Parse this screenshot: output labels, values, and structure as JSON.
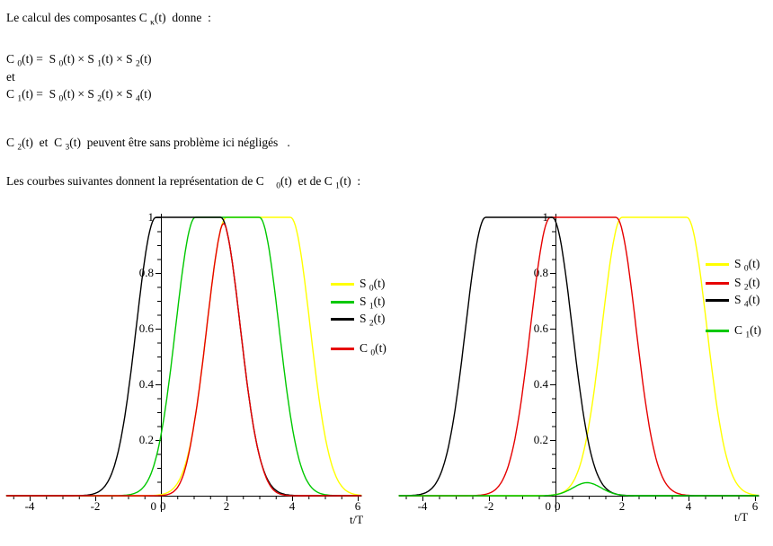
{
  "document": {
    "lines": [
      {
        "tokens": [
          [
            "Le calcul des composantes C ",
            "κ"
          ],
          [
            "(t)  donne  :",
            ""
          ]
        ]
      },
      {
        "tokens": [
          [
            "C ",
            "0"
          ],
          [
            "(t) =  S ",
            "0"
          ],
          [
            "(t) × S ",
            "1"
          ],
          [
            "(t) × S ",
            "2"
          ],
          [
            "(t)",
            ""
          ]
        ]
      },
      {
        "tokens": [
          [
            "et",
            ""
          ]
        ]
      },
      {
        "tokens": [
          [
            "C ",
            "1"
          ],
          [
            "(t) =  S ",
            "0"
          ],
          [
            "(t) × S ",
            "2"
          ],
          [
            "(t) × S ",
            "4"
          ],
          [
            "(t)",
            ""
          ]
        ]
      },
      {
        "tokens": [
          [
            "C ",
            "2"
          ],
          [
            "(t)  et  C ",
            "3"
          ],
          [
            "(t)  peuvent être sans problème ici négligés   .",
            ""
          ]
        ]
      },
      {
        "tokens": [
          [
            "Les courbes suivantes donnent la représentation de C    ",
            "0"
          ],
          [
            "(t)  et de C ",
            "1"
          ],
          [
            "(t)  :",
            ""
          ]
        ]
      }
    ]
  },
  "chart_data": [
    {
      "type": "line",
      "title": "",
      "xlabel": "t/T",
      "ylabel": "",
      "xlim": [
        -4.7,
        6.12
      ],
      "ylim": [
        0,
        1
      ],
      "grid": false,
      "legend_position": "right",
      "x_major_ticks": [
        -4,
        -2,
        0,
        2,
        4,
        6
      ],
      "x_major_tick_labels": [
        {
          "v": -4,
          "label": "-4"
        },
        {
          "v": -2,
          "label": "-2"
        },
        {
          "v": 2,
          "label": "2"
        },
        {
          "v": 4,
          "label": "4"
        },
        {
          "v": 6,
          "label": "6"
        }
      ],
      "x_minor_step": 0.5,
      "y_major_tick_labels": [
        {
          "v": 0.2,
          "label": "0.2"
        },
        {
          "v": 0.4,
          "label": "0.4"
        },
        {
          "v": 0.6,
          "label": "0.6"
        },
        {
          "v": 0.8,
          "label": "0.8"
        },
        {
          "v": 1,
          "label": "1"
        }
      ],
      "y_minor_step": 0.05,
      "origin_labels": [
        "0",
        "0"
      ],
      "axis_color": "#000000",
      "series": [
        {
          "key": "S0",
          "name_tokens": [
            [
              "S ",
              "0"
            ],
            [
              "(t)",
              ""
            ]
          ],
          "color": "#ffff00",
          "model": "plateau",
          "plateau": [
            2.0,
            3.95
          ],
          "sigma": 0.6,
          "max": 1
        },
        {
          "key": "S1",
          "name_tokens": [
            [
              "S ",
              "1"
            ],
            [
              "(t)",
              ""
            ]
          ],
          "color": "#00c800",
          "model": "plateau",
          "plateau": [
            1.05,
            3.0
          ],
          "sigma": 0.6,
          "max": 1
        },
        {
          "key": "S2",
          "name_tokens": [
            [
              "S ",
              "2"
            ],
            [
              "(t)",
              ""
            ]
          ],
          "color": "#000000",
          "model": "plateau",
          "plateau": [
            -0.15,
            1.82
          ],
          "sigma": 0.6,
          "max": 1
        },
        {
          "key": "C0",
          "name_tokens": [
            [
              "C ",
              "0"
            ],
            [
              "(t)",
              ""
            ]
          ],
          "color": "#e60000",
          "model": "product",
          "factors": [
            0,
            1,
            2
          ],
          "peak": {
            "x": 1.9,
            "y": 0.96
          },
          "legend_gap": true
        }
      ]
    },
    {
      "type": "line",
      "title": "",
      "xlabel": "t/T",
      "ylabel": "",
      "xlim": [
        -4.7,
        6.12
      ],
      "ylim": [
        0,
        1
      ],
      "grid": false,
      "legend_position": "right",
      "x_major_ticks": [
        -4,
        -2,
        0,
        2,
        4,
        6
      ],
      "x_major_tick_labels": [
        {
          "v": -4,
          "label": "-4"
        },
        {
          "v": -2,
          "label": "-2"
        },
        {
          "v": 2,
          "label": "2"
        },
        {
          "v": 4,
          "label": "4"
        },
        {
          "v": 6,
          "label": "6"
        }
      ],
      "x_minor_step": 0.5,
      "y_major_tick_labels": [
        {
          "v": 0.2,
          "label": "0.2"
        },
        {
          "v": 0.4,
          "label": "0.4"
        },
        {
          "v": 0.6,
          "label": "0.6"
        },
        {
          "v": 0.8,
          "label": "0.8"
        },
        {
          "v": 1,
          "label": "1"
        }
      ],
      "y_minor_step": 0.05,
      "origin_labels": [
        "0",
        "0"
      ],
      "axis_color": "#000000",
      "series": [
        {
          "key": "S0",
          "name_tokens": [
            [
              "S ",
              "0"
            ],
            [
              "(t)",
              ""
            ]
          ],
          "color": "#ffff00",
          "model": "plateau",
          "plateau": [
            2.0,
            3.95
          ],
          "sigma": 0.6,
          "max": 1
        },
        {
          "key": "S2",
          "name_tokens": [
            [
              "S ",
              "2"
            ],
            [
              "(t)",
              ""
            ]
          ],
          "color": "#e60000",
          "model": "plateau",
          "plateau": [
            -0.15,
            1.82
          ],
          "sigma": 0.6,
          "max": 1
        },
        {
          "key": "S4",
          "name_tokens": [
            [
              "S ",
              "4"
            ],
            [
              "(t)",
              ""
            ]
          ],
          "color": "#000000",
          "model": "plateau",
          "plateau": [
            -2.1,
            -0.1
          ],
          "sigma": 0.6,
          "max": 1
        },
        {
          "key": "C1",
          "name_tokens": [
            [
              "C ",
              "1"
            ],
            [
              "(t)",
              ""
            ]
          ],
          "color": "#00c800",
          "model": "product",
          "factors": [
            0,
            1,
            2
          ],
          "peak": {
            "x": 0.95,
            "y": 0.047
          },
          "legend_gap": true
        }
      ]
    }
  ]
}
